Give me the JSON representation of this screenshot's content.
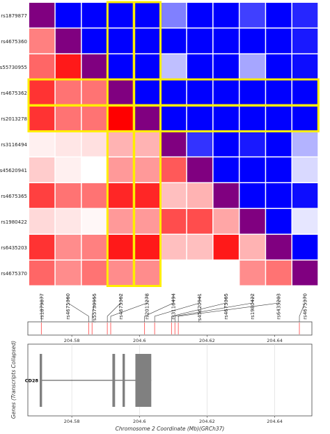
{
  "chart_data": [
    {
      "type": "heatmap",
      "title": "",
      "snps": [
        "rs1879877",
        "rs4675360",
        "rs55730955",
        "rs4675362",
        "rs2013278",
        "rs3116494",
        "rs45620941",
        "rs4675365",
        "rs1980422",
        "rs6435203",
        "rs4675370"
      ],
      "positions_mb": [
        204.571,
        204.585,
        204.586,
        204.5905,
        204.5915,
        204.6015,
        204.6045,
        204.6095,
        204.6105,
        204.6115,
        204.6473
      ],
      "matrix": [
        [
          2,
          -1.0,
          -1.0,
          -1.0,
          -1.0,
          -0.5,
          -1.0,
          -1.0,
          -0.75,
          -1.0,
          -0.85
        ],
        [
          0.5,
          2,
          -1.0,
          -1.0,
          -1.0,
          -1.0,
          -1.0,
          -1.0,
          -1.0,
          -1.0,
          -0.9
        ],
        [
          0.6,
          0.9,
          2,
          -1.0,
          -1.0,
          -0.25,
          -1.0,
          -1.0,
          -0.35,
          -1.0,
          -0.95
        ],
        [
          0.8,
          0.55,
          0.55,
          2,
          -1.0,
          -1.0,
          -1.0,
          -1.0,
          -1.0,
          -1.0,
          -1.0
        ],
        [
          0.8,
          0.55,
          0.55,
          1.0,
          2,
          -1.0,
          -1.0,
          -1.0,
          -1.0,
          -1.0,
          -1.0
        ],
        [
          0.06,
          0.1,
          0.12,
          0.3,
          0.3,
          2,
          -0.8,
          -1.0,
          -0.9,
          -1.0,
          -0.3
        ],
        [
          0.2,
          0.06,
          0.0,
          0.4,
          0.4,
          0.65,
          2,
          -1.0,
          -1.0,
          -1.0,
          -0.15
        ],
        [
          0.75,
          0.55,
          0.55,
          0.85,
          0.85,
          0.25,
          0.3,
          2,
          -1.0,
          -1.0,
          -0.95
        ],
        [
          0.15,
          0.1,
          0.03,
          0.4,
          0.4,
          0.7,
          0.7,
          0.35,
          2,
          -1.0,
          -0.1
        ],
        [
          0.8,
          0.45,
          0.5,
          0.9,
          0.9,
          0.25,
          0.25,
          0.9,
          0.3,
          2,
          -1.0
        ],
        [
          0.6,
          0.45,
          0.55,
          0.45,
          0.45,
          0.0,
          0.0,
          0.0,
          0.45,
          0.55,
          2
        ]
      ],
      "highlighted_snps": [
        "rs4675362",
        "rs2013278"
      ],
      "highlight_color": "#ffee00",
      "colors": {
        "positive": "#ff0000",
        "negative": "#0000ff",
        "diagonal": "#800080",
        "neutral": "#ffffff"
      }
    },
    {
      "type": "scatter",
      "title": "",
      "x_ticks": [
        "204.58",
        "204.6",
        "204.62",
        "204.64"
      ],
      "x_tick_values": [
        204.58,
        204.6,
        204.62,
        204.64
      ],
      "xlim": [
        204.567,
        204.651
      ],
      "marker_color": "#ff6666"
    },
    {
      "type": "bar",
      "title": "",
      "xlabel": "Chromosome 2 Coordinate (Mb)(GRCh37)",
      "ylabel": "Genes (Transcripts Collapsed)",
      "x_ticks": [
        "204.58",
        "204.6",
        "204.62",
        "204.64"
      ],
      "x_tick_values": [
        204.58,
        204.6,
        204.62,
        204.64
      ],
      "xlim": [
        204.567,
        204.651
      ],
      "gene": {
        "name": "CD28",
        "start": 204.5705,
        "end": 204.6035,
        "exons": [
          {
            "start": 204.5705,
            "end": 204.5712
          },
          {
            "start": 204.592,
            "end": 204.5928
          },
          {
            "start": 204.595,
            "end": 204.5957
          },
          {
            "start": 204.5988,
            "end": 204.6035
          }
        ],
        "color": "#808080"
      }
    }
  ]
}
